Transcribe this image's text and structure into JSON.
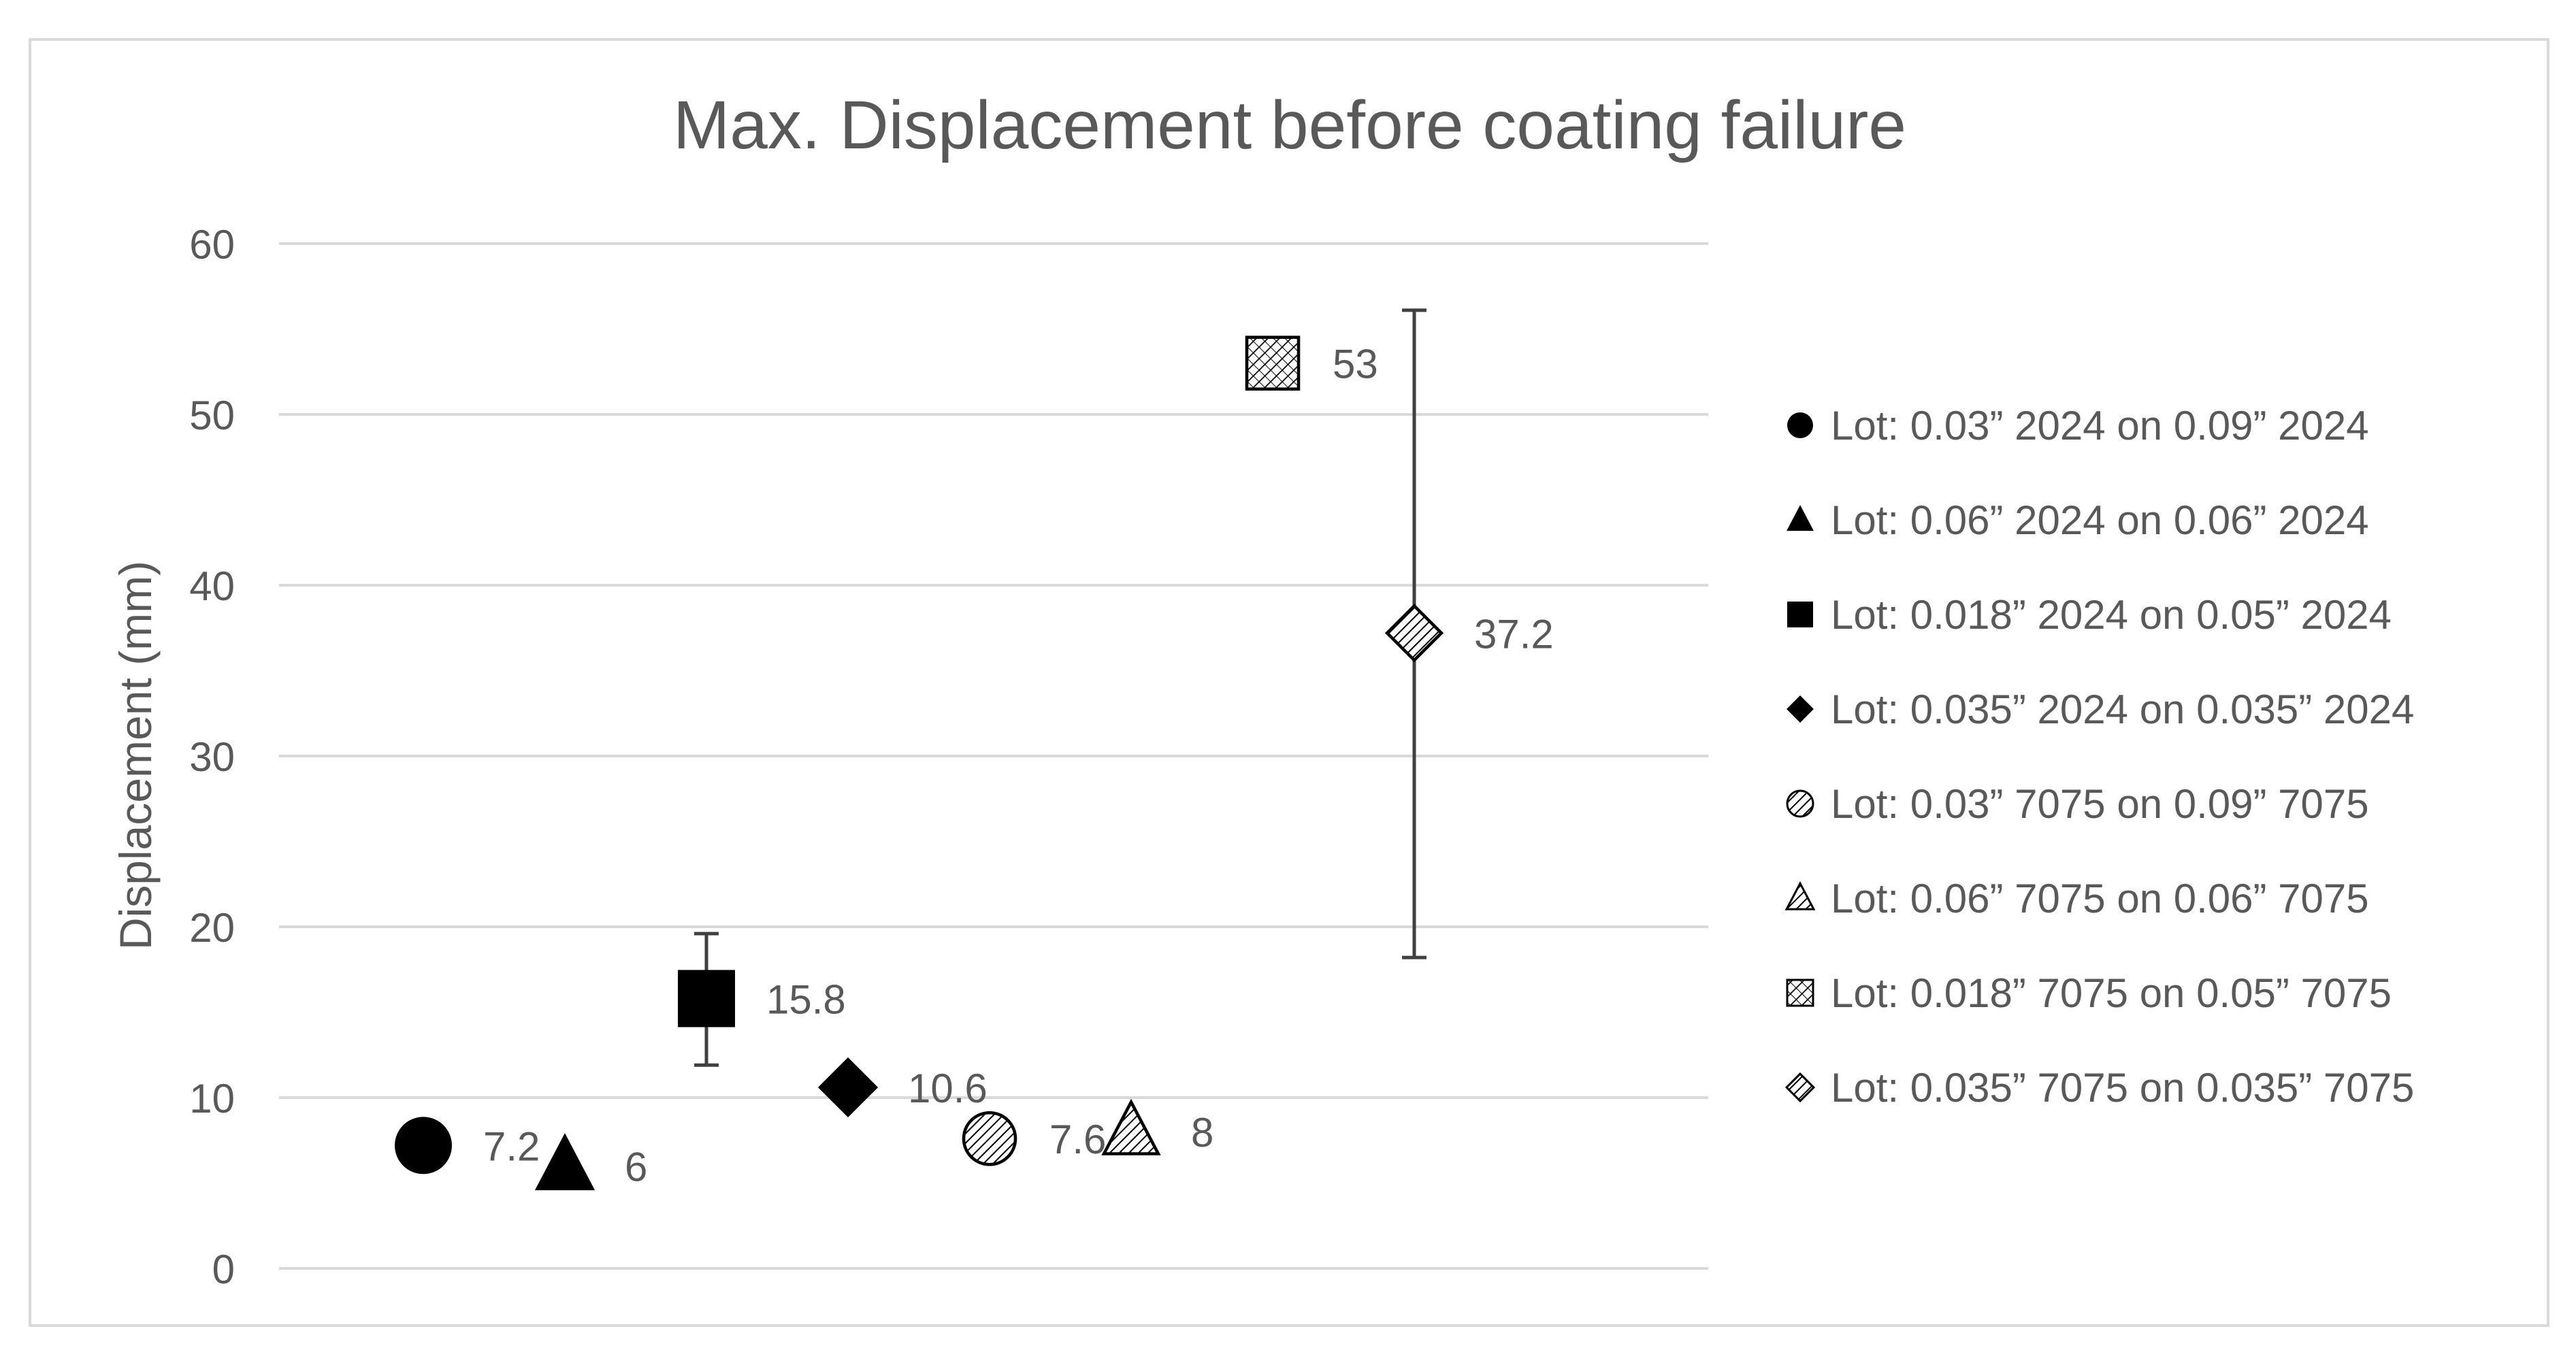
{
  "chart_data": {
    "type": "scatter",
    "title": "Max. Displacement before coating failure",
    "xlabel": "",
    "ylabel": "Displacement (mm)",
    "ylim": [
      0,
      60
    ],
    "yticks": [
      0,
      10,
      20,
      30,
      40,
      50,
      60
    ],
    "grid": "horizontal",
    "legend_position": "right",
    "series": [
      {
        "name": "Lot: 0.03” 2024 on 0.09” 2024",
        "marker": "circle",
        "fill": "solid",
        "x": 1,
        "y": 7.2,
        "label": "7.2"
      },
      {
        "name": "Lot: 0.06” 2024 on 0.06” 2024",
        "marker": "triangle",
        "fill": "solid",
        "x": 2,
        "y": 6,
        "label": "6"
      },
      {
        "name": "Lot: 0.018” 2024 on 0.05” 2024",
        "marker": "square",
        "fill": "solid",
        "x": 3,
        "y": 15.8,
        "label": "15.8",
        "error": [
          11.9,
          19.6
        ]
      },
      {
        "name": "Lot: 0.035” 2024 on 0.035” 2024",
        "marker": "diamond",
        "fill": "solid",
        "x": 4,
        "y": 10.6,
        "label": "10.6"
      },
      {
        "name": "Lot: 0.03” 7075 on 0.09” 7075",
        "marker": "circle",
        "fill": "hatched",
        "x": 5,
        "y": 7.6,
        "label": "7.6"
      },
      {
        "name": "Lot: 0.06” 7075 on 0.06” 7075",
        "marker": "triangle",
        "fill": "hatched",
        "x": 6,
        "y": 8,
        "label": "8"
      },
      {
        "name": "Lot: 0.018” 7075 on 0.05” 7075",
        "marker": "square",
        "fill": "crosshatched",
        "x": 7,
        "y": 53,
        "label": "53"
      },
      {
        "name": "Lot: 0.035” 7075 on 0.035” 7075",
        "marker": "diamond",
        "fill": "hatched",
        "x": 8,
        "y": 37.2,
        "label": "37.2",
        "error": [
          18.2,
          56.1
        ]
      }
    ],
    "colors": {
      "marker": "#000000",
      "text": "#595959",
      "grid": "#d9d9d9",
      "border": "#d9d9d9"
    }
  }
}
